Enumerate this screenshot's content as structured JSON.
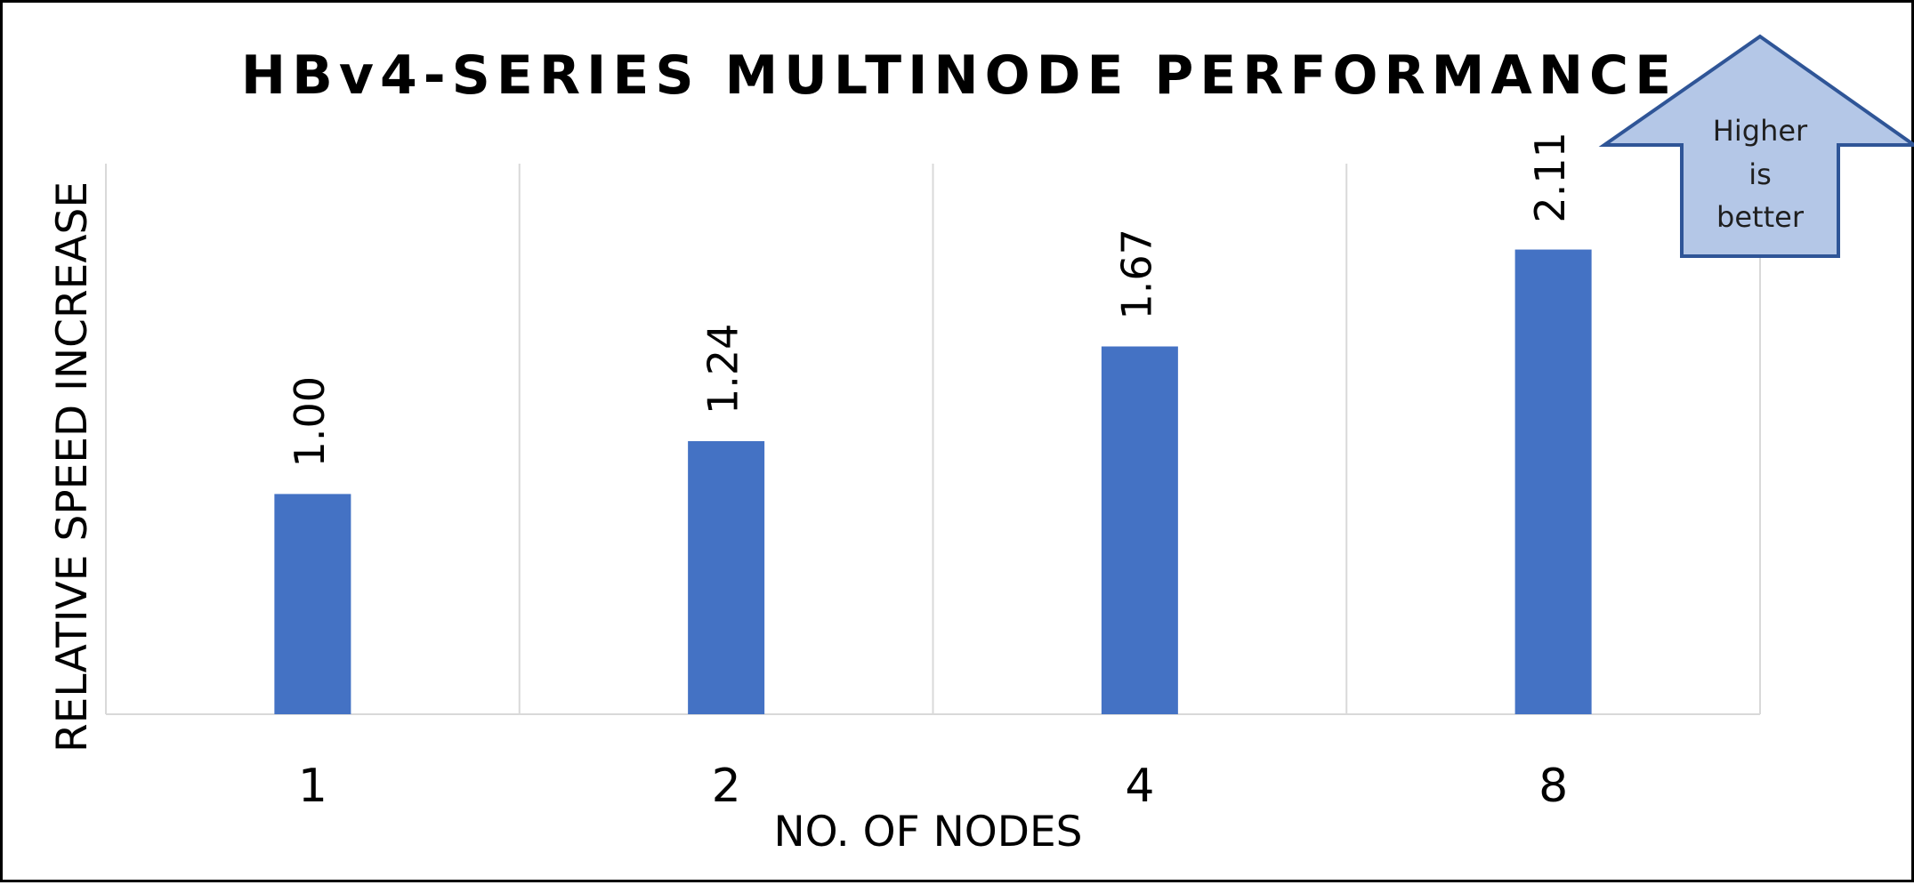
{
  "chart_data": {
    "type": "bar",
    "title": "HBv4-SERIES MULTINODE PERFORMANCE",
    "xlabel": "NO. OF NODES",
    "ylabel": "RELATIVE SPEED INCREASE",
    "categories": [
      "1",
      "2",
      "4",
      "8"
    ],
    "series": [
      {
        "values": [
          1.0,
          1.24,
          1.67,
          2.11
        ],
        "labels": [
          "1.00",
          "1.24",
          "1.67",
          "2.11"
        ],
        "color": "#4472C4"
      }
    ],
    "ylim": [
      0,
      2.5
    ],
    "grid": "vertical",
    "legend": "none",
    "annotations": [
      {
        "text_lines": [
          "Higher",
          "is",
          "better"
        ],
        "shape": "up-arrow",
        "fill": "#B4C7E7",
        "stroke": "#2F5597"
      }
    ]
  }
}
